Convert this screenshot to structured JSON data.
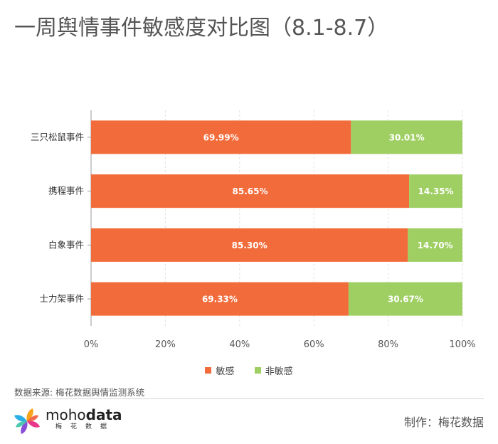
{
  "title": "一周舆情事件敏感度对比图（8.1-8.7）",
  "colors": {
    "sensitive": "#f26b3a",
    "non_sensitive": "#9fcf63",
    "grid": "#e2e2e2",
    "axis": "#999999"
  },
  "chart_data": {
    "type": "bar",
    "orientation": "horizontal",
    "stacked": true,
    "categories": [
      "三只松鼠事件",
      "携程事件",
      "白象事件",
      "士力架事件"
    ],
    "series": [
      {
        "name": "敏感",
        "values": [
          69.99,
          85.65,
          85.3,
          69.33
        ],
        "labels": [
          "69.99%",
          "85.65%",
          "85.30%",
          "69.33%"
        ]
      },
      {
        "name": "非敏感",
        "values": [
          30.01,
          14.35,
          14.7,
          30.67
        ],
        "labels": [
          "30.01%",
          "14.35%",
          "14.70%",
          "30.67%"
        ]
      }
    ],
    "xlim": [
      0,
      100
    ],
    "xticks": [
      "0%",
      "20%",
      "40%",
      "60%",
      "80%",
      "100%"
    ],
    "grid": true,
    "legend_position": "bottom"
  },
  "legend": [
    {
      "label": "敏感",
      "color": "#f26b3a"
    },
    {
      "label": "非敏感",
      "color": "#9fcf63"
    }
  ],
  "footer": {
    "source": "数据来源: 梅花数据舆情监测系统",
    "brand_light": "moho",
    "brand_bold": "data",
    "brand_sub": "梅花数据",
    "credit": "制作：梅花数据"
  },
  "logo_icon": "pinwheel-logo-icon"
}
